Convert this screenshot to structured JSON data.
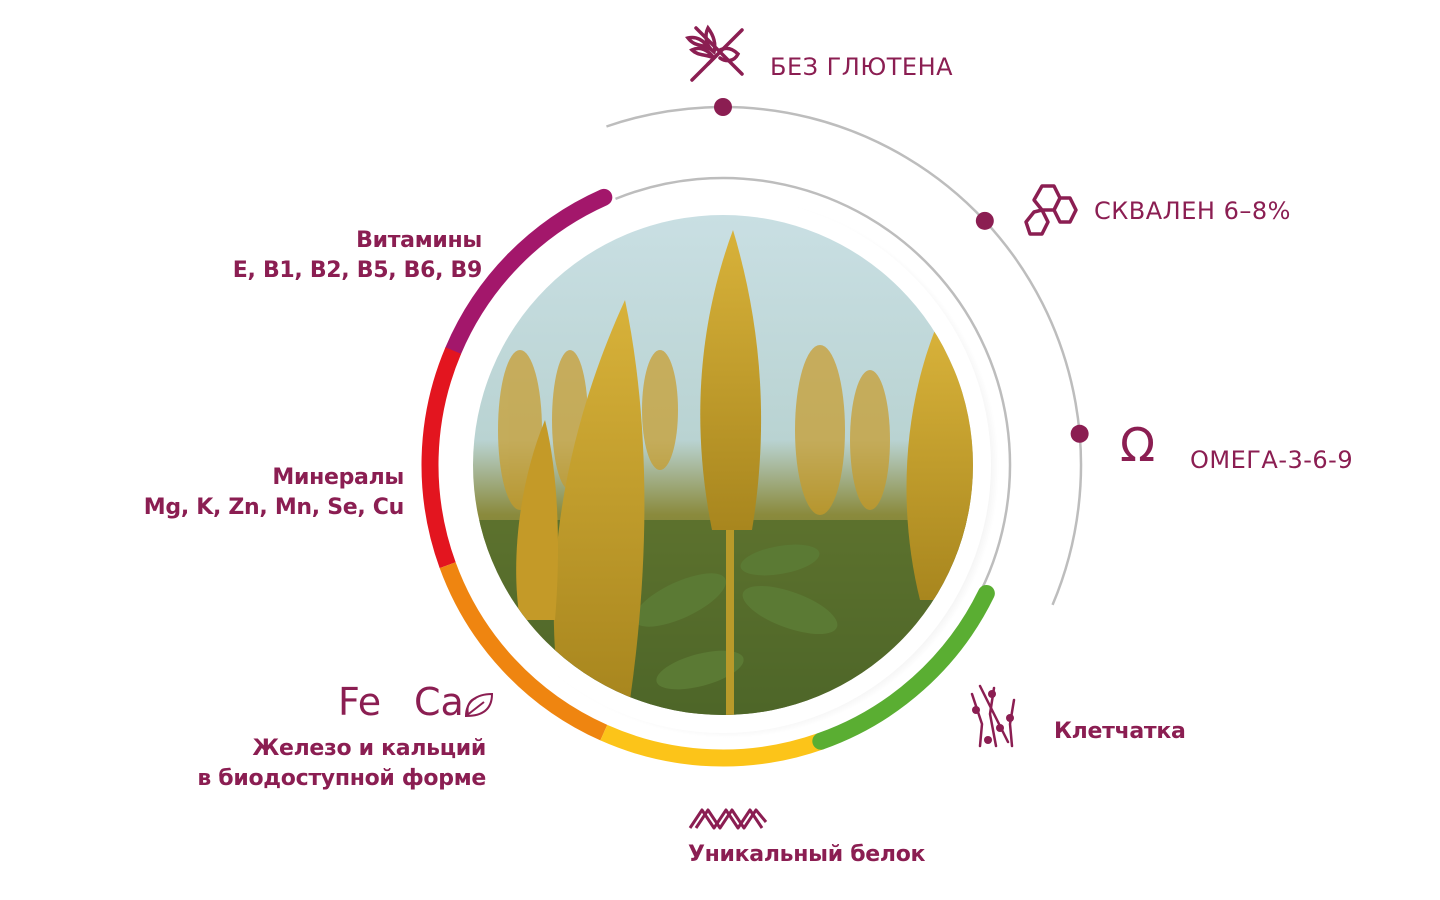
{
  "features": {
    "gluten_free": {
      "label": "БЕЗ ГЛЮТЕНА",
      "icon": "no-wheat-icon"
    },
    "squalene": {
      "label": "СКВАЛЕН 6–8%",
      "icon": "hexagon-molecule-icon"
    },
    "omega": {
      "label": "ОМЕГА-3-6-9",
      "icon": "omega-icon",
      "symbol": "Ω"
    },
    "fiber": {
      "label": "Клетчатка",
      "icon": "fiber-icon"
    },
    "protein": {
      "label": "Уникальный белок",
      "icon": "dna-helix-icon"
    },
    "iron_calcium": {
      "line1": "Железо и кальций",
      "line2": "в биодоступной форме",
      "symbol_fe": "Fe",
      "symbol_ca": "Ca",
      "icon": "leaf-icon"
    },
    "minerals": {
      "line1": "Минералы",
      "line2": "Mg, K, Zn, Mn, Se, Cu"
    },
    "vitamins": {
      "line1": "Витамины",
      "line2": "E, B1, B2, B5, B6, B9"
    }
  },
  "ring_segments": [
    {
      "name": "vitamins",
      "color": "#a3176b"
    },
    {
      "name": "minerals",
      "color": "#e3151f"
    },
    {
      "name": "iron-calcium",
      "color": "#ef8510"
    },
    {
      "name": "protein",
      "color": "#fcc419"
    },
    {
      "name": "fiber",
      "color": "#5aae32"
    }
  ],
  "colors": {
    "text": "#8b1e52",
    "line": "#bdbdbd",
    "dot": "#8b1e52"
  }
}
